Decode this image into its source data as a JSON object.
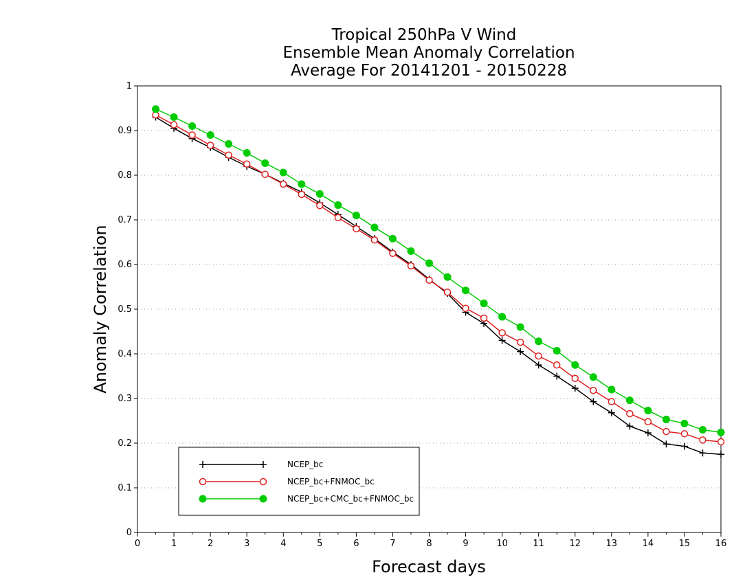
{
  "chart_data": {
    "type": "line",
    "title_lines": [
      "Tropical 250hPa V Wind",
      "Ensemble Mean Anomaly Correlation",
      "Average For 20141201 - 20150228"
    ],
    "xlabel": "Forecast days",
    "ylabel": "Anomaly Correlation",
    "xlim": [
      0,
      16
    ],
    "ylim": [
      0,
      1
    ],
    "x_ticks": [
      "0",
      "1",
      "2",
      "3",
      "4",
      "5",
      "6",
      "7",
      "8",
      "9",
      "10",
      "11",
      "12",
      "13",
      "14",
      "15",
      "16"
    ],
    "y_ticks": [
      "0",
      "0.1",
      "0.2",
      "0.3",
      "0.4",
      "0.5",
      "0.6",
      "0.7",
      "0.8",
      "0.9",
      "1"
    ],
    "grid": "horizontal dotted",
    "legend_position": "bottom-left",
    "x": [
      0.5,
      1,
      1.5,
      2,
      2.5,
      3,
      3.5,
      4,
      4.5,
      5,
      5.5,
      6,
      6.5,
      7,
      7.5,
      8,
      8.5,
      9,
      9.5,
      10,
      10.5,
      11,
      11.5,
      12,
      12.5,
      13,
      13.5,
      14,
      14.5,
      15,
      15.5,
      16
    ],
    "series": [
      {
        "name": "NCEP_bc",
        "color": "#000000",
        "marker": "plus",
        "values": [
          0.93,
          0.905,
          0.882,
          0.862,
          0.84,
          0.82,
          0.802,
          0.782,
          0.762,
          0.738,
          0.712,
          0.685,
          0.658,
          0.628,
          0.6,
          0.567,
          0.535,
          0.493,
          0.468,
          0.43,
          0.405,
          0.375,
          0.35,
          0.323,
          0.293,
          0.268,
          0.238,
          0.223,
          0.198,
          0.193,
          0.178,
          0.175
        ]
      },
      {
        "name": "NCEP_bc+FNMOC_bc",
        "color": "#e02020",
        "marker": "open-circle",
        "values": [
          0.935,
          0.913,
          0.89,
          0.867,
          0.845,
          0.825,
          0.802,
          0.78,
          0.757,
          0.732,
          0.705,
          0.68,
          0.655,
          0.625,
          0.597,
          0.565,
          0.538,
          0.502,
          0.48,
          0.447,
          0.426,
          0.395,
          0.375,
          0.345,
          0.318,
          0.293,
          0.266,
          0.248,
          0.226,
          0.221,
          0.207,
          0.203
        ]
      },
      {
        "name": "NCEP_bc+CMC_bc+FNMOC_bc",
        "color": "#00cc00",
        "marker": "filled-circle",
        "values": [
          0.948,
          0.93,
          0.91,
          0.89,
          0.87,
          0.85,
          0.827,
          0.806,
          0.78,
          0.758,
          0.733,
          0.71,
          0.683,
          0.658,
          0.63,
          0.603,
          0.572,
          0.542,
          0.513,
          0.483,
          0.46,
          0.428,
          0.407,
          0.375,
          0.348,
          0.32,
          0.296,
          0.273,
          0.253,
          0.244,
          0.23,
          0.224
        ]
      }
    ]
  }
}
